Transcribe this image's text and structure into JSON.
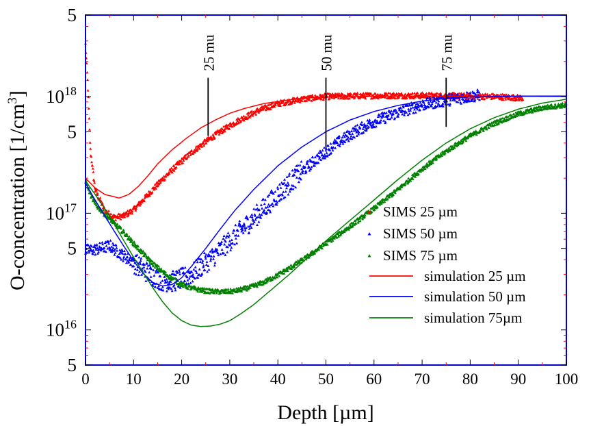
{
  "chart_data": {
    "type": "scatter",
    "xlabel": "Depth [µm]",
    "ylabel_main": "O-concentration [1/cm",
    "ylabel_sup": "3",
    "ylabel_end": "]",
    "xlim": [
      0,
      100
    ],
    "ylim": [
      5000000000000000.0,
      5e+18
    ],
    "yscale": "log",
    "x_ticks": [
      0,
      10,
      20,
      30,
      40,
      50,
      60,
      70,
      80,
      90,
      100
    ],
    "x_tick_labels": [
      "0",
      "10",
      "20",
      "30",
      "40",
      "50",
      "60",
      "70",
      "80",
      "90",
      "100"
    ],
    "y_tick_labels": [
      {
        "value": 5e+18,
        "base": "5",
        "sup": ""
      },
      {
        "value": 1e+18,
        "base": "10",
        "sup": "18"
      },
      {
        "value": 5e+17,
        "base": "5",
        "sup": ""
      },
      {
        "value": 1e+17,
        "base": "10",
        "sup": "17"
      },
      {
        "value": 5e+16,
        "base": "5",
        "sup": ""
      },
      {
        "value": 1e+16,
        "base": "10",
        "sup": "16"
      },
      {
        "value": 5000000000000000.0,
        "base": "5",
        "sup": ""
      }
    ],
    "markers": [
      {
        "label": "25 mu",
        "x": 25.5,
        "y_top": 1.45e+18,
        "y_bottom": 4.6e+17
      },
      {
        "label": "50 mu",
        "x": 50,
        "y_top": 1.45e+18,
        "y_bottom": 3.6e+17
      },
      {
        "label": "75 mu",
        "x": 75,
        "y_top": 1.45e+18,
        "y_bottom": 5.5e+17
      }
    ],
    "legend_position": "center-right",
    "series": [
      {
        "name": "SIMS 25 µm",
        "kind": "scatter",
        "color": "#ff0000",
        "noise": 0.025,
        "x_max": 91,
        "points": [
          [
            0,
            2.8e+18
          ],
          [
            0.5,
            1.2e+18
          ],
          [
            1,
            3.5e+17
          ],
          [
            2,
            1.6e+17
          ],
          [
            4,
            1.05e+17
          ],
          [
            6,
            9.2e+16
          ],
          [
            8,
            9.5e+16
          ],
          [
            10,
            1.07e+17
          ],
          [
            12,
            1.3e+17
          ],
          [
            14,
            1.6e+17
          ],
          [
            16,
            1.95e+17
          ],
          [
            18,
            2.35e+17
          ],
          [
            20,
            2.8e+17
          ],
          [
            22,
            3.3e+17
          ],
          [
            25,
            4.1e+17
          ],
          [
            28,
            5e+17
          ],
          [
            32,
            6.3e+17
          ],
          [
            36,
            7.6e+17
          ],
          [
            40,
            8.7e+17
          ],
          [
            45,
            9.5e+17
          ],
          [
            50,
            1e+18
          ],
          [
            60,
            1.02e+18
          ],
          [
            70,
            1.02e+18
          ],
          [
            80,
            1.01e+18
          ],
          [
            85,
            1e+18
          ],
          [
            91,
            9.7e+17
          ]
        ]
      },
      {
        "name": "SIMS 50 µm",
        "kind": "scatter",
        "color": "#0000ff",
        "noise": 0.05,
        "x_max": 82,
        "points": [
          [
            0,
            4.8e+16
          ],
          [
            2,
            4.9e+16
          ],
          [
            4,
            5.1e+16
          ],
          [
            5,
            5.3e+16
          ],
          [
            6,
            4.9e+16
          ],
          [
            8,
            4.3e+16
          ],
          [
            10,
            3.8e+16
          ],
          [
            12,
            3.3e+16
          ],
          [
            14,
            2.9e+16
          ],
          [
            16,
            2.65e+16
          ],
          [
            18,
            2.6e+16
          ],
          [
            20,
            2.75e+16
          ],
          [
            22,
            3e+16
          ],
          [
            24,
            3.5e+16
          ],
          [
            27,
            4.4e+16
          ],
          [
            30,
            5.8e+16
          ],
          [
            33,
            7.6e+16
          ],
          [
            36,
            1e+17
          ],
          [
            40,
            1.45e+17
          ],
          [
            44,
            2.1e+17
          ],
          [
            48,
            2.9e+17
          ],
          [
            52,
            3.9e+17
          ],
          [
            56,
            5e+17
          ],
          [
            60,
            6.1e+17
          ],
          [
            65,
            7.3e+17
          ],
          [
            70,
            8.5e+17
          ],
          [
            75,
            9.3e+17
          ],
          [
            80,
            1e+18
          ],
          [
            82,
            1.03e+18
          ]
        ]
      },
      {
        "name": "SIMS 75 µm",
        "kind": "scatter",
        "color": "#008000",
        "noise": 0.02,
        "x_max": 100,
        "points": [
          [
            0,
            1.9e+17
          ],
          [
            1,
            1.45e+17
          ],
          [
            2,
            1.2e+17
          ],
          [
            4,
            9.8e+16
          ],
          [
            6,
            8.2e+16
          ],
          [
            8,
            6.8e+16
          ],
          [
            10,
            5.5e+16
          ],
          [
            12,
            4.5e+16
          ],
          [
            14,
            3.7e+16
          ],
          [
            16,
            3.15e+16
          ],
          [
            18,
            2.75e+16
          ],
          [
            20,
            2.45e+16
          ],
          [
            22,
            2.28e+16
          ],
          [
            25,
            2.16e+16
          ],
          [
            28,
            2.12e+16
          ],
          [
            31,
            2.15e+16
          ],
          [
            34,
            2.3e+16
          ],
          [
            37,
            2.55e+16
          ],
          [
            40,
            2.95e+16
          ],
          [
            43,
            3.5e+16
          ],
          [
            46,
            4.2e+16
          ],
          [
            50,
            5.5e+16
          ],
          [
            55,
            7.7e+16
          ],
          [
            60,
            1.1e+17
          ],
          [
            65,
            1.6e+17
          ],
          [
            70,
            2.4e+17
          ],
          [
            75,
            3.4e+17
          ],
          [
            80,
            4.6e+17
          ],
          [
            85,
            5.9e+17
          ],
          [
            90,
            7.1e+17
          ],
          [
            95,
            8e+17
          ],
          [
            100,
            8.5e+17
          ]
        ]
      },
      {
        "name": "simulation 25 µm",
        "kind": "line",
        "color": "#ff0000",
        "points": [
          [
            0,
            2e+17
          ],
          [
            2,
            1.65e+17
          ],
          [
            4,
            1.45e+17
          ],
          [
            7,
            1.35e+17
          ],
          [
            9,
            1.45e+17
          ],
          [
            11,
            1.7e+17
          ],
          [
            13,
            2.1e+17
          ],
          [
            15,
            2.65e+17
          ],
          [
            18,
            3.5e+17
          ],
          [
            21,
            4.4e+17
          ],
          [
            24,
            5.4e+17
          ],
          [
            27,
            6.3e+17
          ],
          [
            30,
            7.2e+17
          ],
          [
            33,
            7.9e+17
          ],
          [
            37,
            8.7e+17
          ],
          [
            42,
            9.35e+17
          ],
          [
            47,
            9.8e+17
          ],
          [
            55,
            1e+18
          ],
          [
            65,
            1.01e+18
          ],
          [
            80,
            1.01e+18
          ],
          [
            100,
            1e+18
          ]
        ]
      },
      {
        "name": "simulation 50 µm",
        "kind": "line",
        "color": "#0000ff",
        "points": [
          [
            0,
            1.8e+17
          ],
          [
            2,
            1.3e+17
          ],
          [
            4,
            9.5e+16
          ],
          [
            6,
            7e+16
          ],
          [
            8,
            5.2e+16
          ],
          [
            10,
            3.9e+16
          ],
          [
            12,
            3.05e+16
          ],
          [
            14,
            2.55e+16
          ],
          [
            16,
            2.38e+16
          ],
          [
            18,
            2.45e+16
          ],
          [
            20,
            2.8e+16
          ],
          [
            22,
            3.5e+16
          ],
          [
            25,
            5e+16
          ],
          [
            28,
            7.3e+16
          ],
          [
            31,
            1.05e+17
          ],
          [
            35,
            1.6e+17
          ],
          [
            40,
            2.55e+17
          ],
          [
            45,
            3.7e+17
          ],
          [
            50,
            5e+17
          ],
          [
            55,
            6.3e+17
          ],
          [
            60,
            7.45e+17
          ],
          [
            65,
            8.4e+17
          ],
          [
            70,
            9.15e+17
          ],
          [
            75,
            9.65e+17
          ],
          [
            80,
            9.95e+17
          ],
          [
            90,
            1.01e+18
          ],
          [
            100,
            1.01e+18
          ]
        ]
      },
      {
        "name": "simulation 75µm",
        "kind": "line",
        "color": "#008000",
        "points": [
          [
            0,
            1.9e+17
          ],
          [
            2,
            1.45e+17
          ],
          [
            4,
            1.1e+17
          ],
          [
            6,
            8e+16
          ],
          [
            8,
            5.8e+16
          ],
          [
            10,
            4.2e+16
          ],
          [
            12,
            3.1e+16
          ],
          [
            14,
            2.3e+16
          ],
          [
            16,
            1.75e+16
          ],
          [
            18,
            1.4e+16
          ],
          [
            20,
            1.2e+16
          ],
          [
            22,
            1.1e+16
          ],
          [
            24,
            1.07e+16
          ],
          [
            26,
            1.08e+16
          ],
          [
            28,
            1.12e+16
          ],
          [
            30,
            1.2e+16
          ],
          [
            32,
            1.35e+16
          ],
          [
            35,
            1.65e+16
          ],
          [
            38,
            2.1e+16
          ],
          [
            42,
            2.9e+16
          ],
          [
            46,
            4.1e+16
          ],
          [
            50,
            5.8e+16
          ],
          [
            55,
            8.7e+16
          ],
          [
            60,
            1.3e+17
          ],
          [
            65,
            1.95e+17
          ],
          [
            70,
            2.85e+17
          ],
          [
            75,
            4e+17
          ],
          [
            80,
            5.3e+17
          ],
          [
            85,
            6.6e+17
          ],
          [
            90,
            7.8e+17
          ],
          [
            95,
            8.8e+17
          ],
          [
            100,
            9.5e+17
          ]
        ]
      }
    ]
  }
}
